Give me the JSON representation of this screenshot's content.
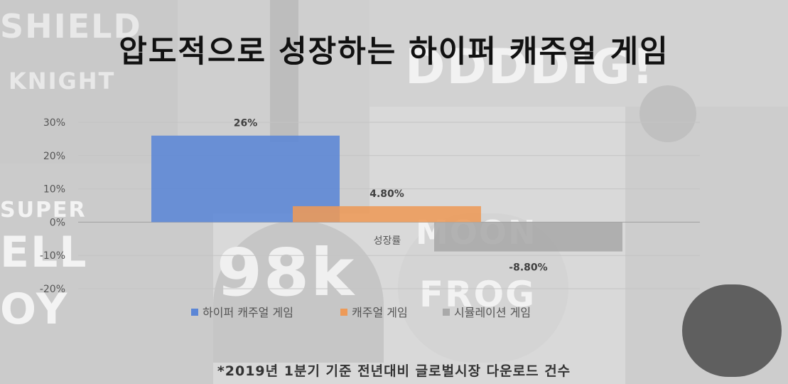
{
  "title": "압도적으로 성장하는 하이퍼 캐주얼 게임",
  "footnote": "*2019년 1분기 기준 전년대비 글로벌시장 다운로드 건수",
  "background_text": [
    "SHIELD",
    "KNIGHT",
    "DDDDIG!",
    "SUPER",
    "ELL",
    "OY",
    "98k",
    "MOON",
    "FROG"
  ],
  "chart_data": {
    "type": "bar",
    "categories": [
      "성장률"
    ],
    "series": [
      {
        "name": "하이퍼 캐주얼 게임",
        "values": [
          26
        ],
        "label": "26%",
        "color": "#5b86d6"
      },
      {
        "name": "캐주얼 게임",
        "values": [
          4.8
        ],
        "label": "4.80%",
        "color": "#ed9a58"
      },
      {
        "name": "시뮬레이션 게임",
        "values": [
          -8.8
        ],
        "label": "-8.80%",
        "color": "#a9a9a9"
      }
    ],
    "ylim": [
      -20,
      30
    ],
    "yticks": [
      30,
      20,
      10,
      0,
      -10,
      -20
    ],
    "ytick_labels": [
      "30%",
      "20%",
      "10%",
      "0%",
      "-10%",
      "-20%"
    ],
    "grid": true,
    "legend_position": "bottom"
  }
}
